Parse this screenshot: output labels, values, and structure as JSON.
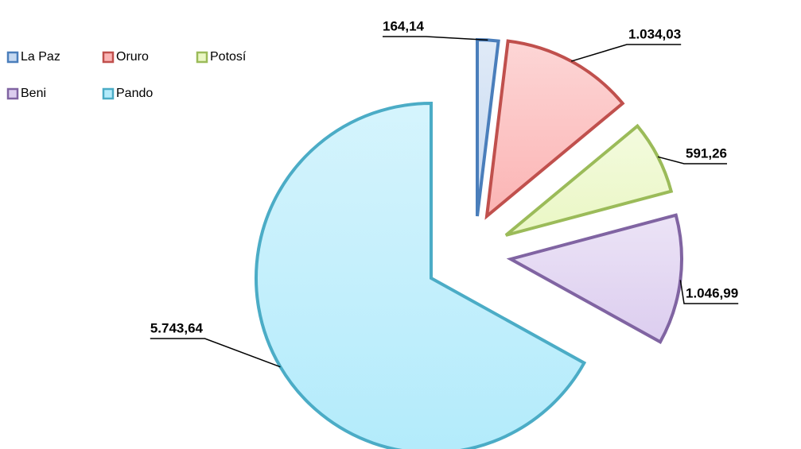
{
  "chart_data": {
    "type": "pie",
    "categories": [
      "La Paz",
      "Oruro",
      "Potosí",
      "Beni",
      "Pando"
    ],
    "values": [
      164.14,
      1034.03,
      591.26,
      1046.99,
      5743.64
    ],
    "value_labels": [
      "164,14",
      "1.034,03",
      "591,26",
      "1.046,99",
      "5.743,64"
    ],
    "colors": [
      "#4a7ebb",
      "#c0504d",
      "#9bbb59",
      "#8064a2",
      "#4bacc6"
    ],
    "fills": [
      "#c6d9f1",
      "#fbb4b4",
      "#eaf7c4",
      "#dccdef",
      "#b3ebfb"
    ],
    "legend": "top-left"
  }
}
